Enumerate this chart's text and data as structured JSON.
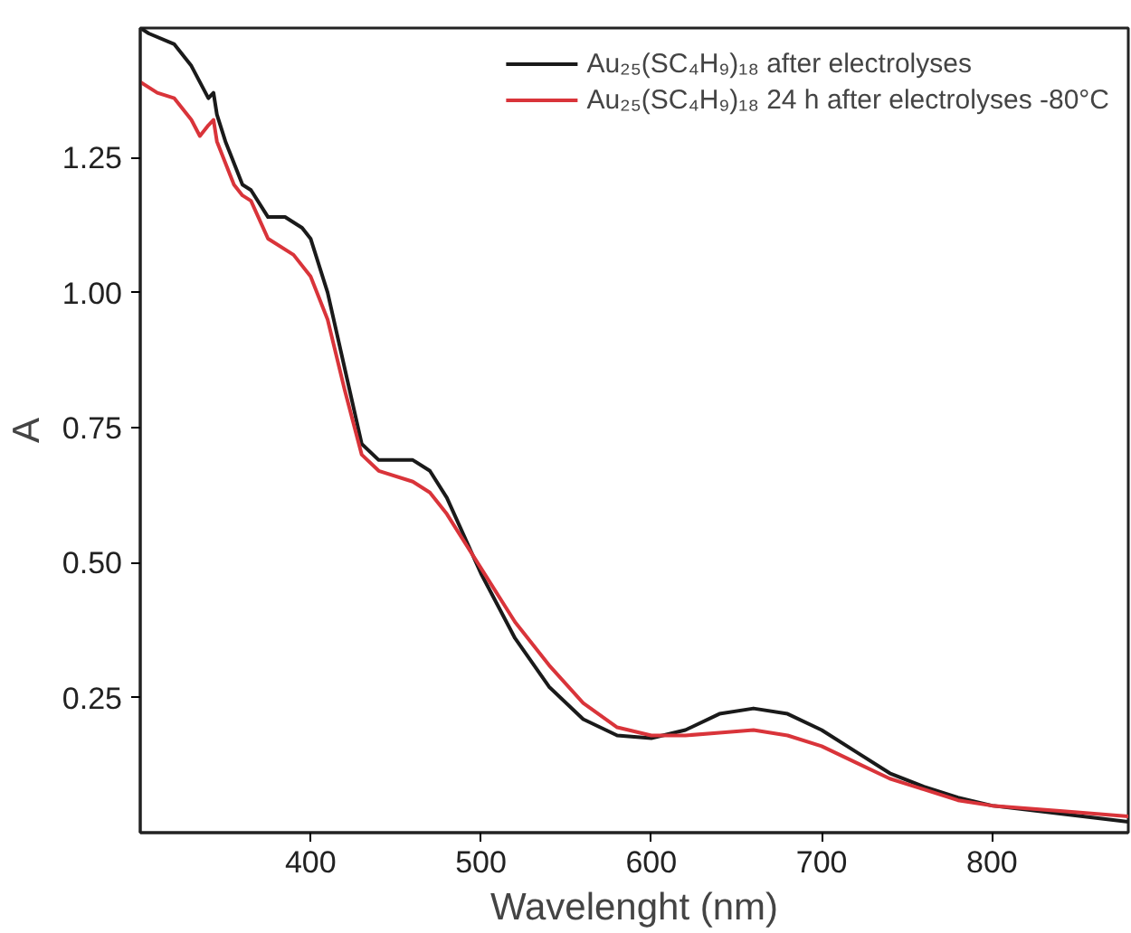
{
  "chart_data": {
    "type": "line",
    "xlabel": "Wavelenght (nm)",
    "ylabel": "A",
    "xlim": [
      300,
      880
    ],
    "ylim": [
      0,
      1.49
    ],
    "xticks": [
      400,
      500,
      600,
      700,
      800
    ],
    "yticks": [
      {
        "value": 0.25,
        "label": "0.25"
      },
      {
        "value": 0.5,
        "label": "0.50"
      },
      {
        "value": 0.75,
        "label": "0.75"
      },
      {
        "value": 1.0,
        "label": "1.00"
      },
      {
        "value": 1.25,
        "label": "1.25"
      }
    ],
    "grid": false,
    "legend": "top right",
    "series": [
      {
        "name": "Au₂₅(SC₄H₉)₁₈ after electrolyses",
        "color": "#1a1a1a",
        "x": [
          300,
          305,
          320,
          330,
          340,
          343,
          345,
          350,
          360,
          365,
          375,
          385,
          395,
          400,
          410,
          420,
          430,
          440,
          460,
          470,
          480,
          500,
          520,
          540,
          560,
          580,
          600,
          620,
          640,
          660,
          680,
          700,
          720,
          740,
          760,
          780,
          800,
          840,
          880
        ],
        "values": [
          1.49,
          1.48,
          1.46,
          1.42,
          1.36,
          1.37,
          1.33,
          1.28,
          1.2,
          1.19,
          1.14,
          1.14,
          1.12,
          1.1,
          1.0,
          0.86,
          0.72,
          0.69,
          0.69,
          0.67,
          0.62,
          0.48,
          0.36,
          0.27,
          0.21,
          0.18,
          0.175,
          0.19,
          0.22,
          0.23,
          0.22,
          0.19,
          0.15,
          0.11,
          0.085,
          0.065,
          0.05,
          0.035,
          0.02
        ]
      },
      {
        "name": "Au₂₅(SC₄H₉)₁₈ 24 h after electrolyses -80°C",
        "color": "#d9343a",
        "x": [
          300,
          310,
          320,
          330,
          335,
          340,
          343,
          345,
          355,
          360,
          365,
          375,
          390,
          400,
          410,
          420,
          430,
          440,
          460,
          470,
          480,
          500,
          520,
          540,
          560,
          580,
          600,
          620,
          640,
          660,
          680,
          700,
          720,
          740,
          760,
          780,
          800,
          840,
          880
        ],
        "values": [
          1.39,
          1.37,
          1.36,
          1.32,
          1.29,
          1.31,
          1.32,
          1.28,
          1.2,
          1.18,
          1.17,
          1.1,
          1.07,
          1.03,
          0.95,
          0.82,
          0.7,
          0.67,
          0.65,
          0.63,
          0.59,
          0.49,
          0.39,
          0.31,
          0.24,
          0.195,
          0.18,
          0.18,
          0.185,
          0.19,
          0.18,
          0.16,
          0.13,
          0.1,
          0.08,
          0.06,
          0.05,
          0.04,
          0.03
        ]
      }
    ]
  }
}
